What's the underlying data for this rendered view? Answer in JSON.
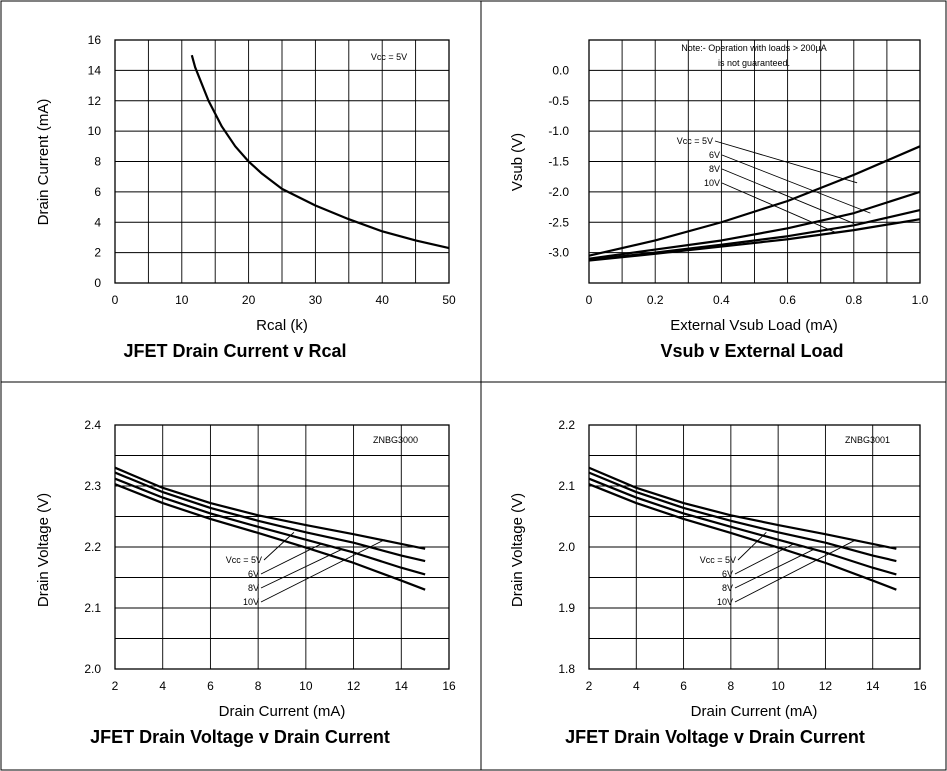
{
  "chart_data": [
    {
      "type": "line",
      "title": "JFET Drain Current v Rcal",
      "xlabel": "Rcal (k)",
      "ylabel": "Drain Current (mA)",
      "xlim": [
        0,
        50
      ],
      "ylim": [
        0,
        16
      ],
      "xticks": [
        "0",
        "10",
        "20",
        "30",
        "40",
        "50"
      ],
      "yticks": [
        "0",
        "2",
        "4",
        "6",
        "8",
        "10",
        "12",
        "14",
        "16"
      ],
      "grid": true,
      "annotations": [
        "Vcc = 5V"
      ],
      "series": [
        {
          "x": [
            11.5,
            12,
            14,
            16,
            18,
            20,
            22,
            25,
            30,
            35,
            40,
            45,
            50
          ],
          "y": [
            15.0,
            14.2,
            12.0,
            10.3,
            9.0,
            8.0,
            7.2,
            6.2,
            5.1,
            4.2,
            3.4,
            2.8,
            2.3
          ]
        }
      ]
    },
    {
      "type": "line",
      "title": "Vsub v External Load",
      "xlabel": "External Vsub Load (mA)",
      "ylabel": "Vsub (V)",
      "xlim": [
        0,
        1.0
      ],
      "ylim": [
        -3.5,
        0.5
      ],
      "xticks": [
        "0",
        "0.2",
        "0.4",
        "0.6",
        "0.8",
        "1.0"
      ],
      "yticks": [
        "0.0",
        "-0.5",
        "-1.0",
        "-1.5",
        "-2.0",
        "-2.5",
        "-3.0"
      ],
      "grid": true,
      "annotations": [
        "Note:- Operation with loads > 200µA",
        "is not guaranteed."
      ],
      "series": [
        {
          "name": "Vcc = 5V",
          "x": [
            0,
            0.2,
            0.4,
            0.6,
            0.8,
            1.0
          ],
          "y": [
            -3.05,
            -2.8,
            -2.5,
            -2.15,
            -1.72,
            -1.25
          ]
        },
        {
          "name": "6V",
          "x": [
            0,
            0.2,
            0.4,
            0.6,
            0.8,
            1.0
          ],
          "y": [
            -3.1,
            -2.95,
            -2.8,
            -2.6,
            -2.35,
            -2.0
          ]
        },
        {
          "name": "8V",
          "x": [
            0,
            0.2,
            0.4,
            0.6,
            0.8,
            1.0
          ],
          "y": [
            -3.12,
            -3.0,
            -2.87,
            -2.73,
            -2.55,
            -2.3
          ]
        },
        {
          "name": "10V",
          "x": [
            0,
            0.2,
            0.4,
            0.6,
            0.8,
            1.0
          ],
          "y": [
            -3.13,
            -3.02,
            -2.9,
            -2.78,
            -2.63,
            -2.45
          ]
        }
      ]
    },
    {
      "type": "line",
      "title": "JFET Drain Voltage v Drain Current",
      "xlabel": "Drain Current (mA)",
      "ylabel": "Drain Voltage (V)",
      "xlim": [
        2,
        16
      ],
      "ylim": [
        2.0,
        2.4
      ],
      "xticks": [
        "2",
        "4",
        "6",
        "8",
        "10",
        "12",
        "14",
        "16"
      ],
      "yticks": [
        "2.0",
        "2.1",
        "2.2",
        "2.3",
        "2.4"
      ],
      "grid": true,
      "annotations": [
        "ZNBG3000"
      ],
      "series": [
        {
          "name": "Vcc = 5V",
          "x": [
            2,
            4,
            6,
            8,
            10,
            12,
            14,
            15
          ],
          "y": [
            2.33,
            2.297,
            2.272,
            2.252,
            2.236,
            2.221,
            2.205,
            2.197
          ]
        },
        {
          "name": "6V",
          "x": [
            2,
            4,
            6,
            8,
            10,
            12,
            14,
            15
          ],
          "y": [
            2.322,
            2.29,
            2.264,
            2.243,
            2.224,
            2.207,
            2.186,
            2.177
          ]
        },
        {
          "name": "8V",
          "x": [
            2,
            4,
            6,
            8,
            10,
            12,
            14,
            15
          ],
          "y": [
            2.312,
            2.281,
            2.255,
            2.233,
            2.212,
            2.191,
            2.166,
            2.155
          ]
        },
        {
          "name": "10V",
          "x": [
            2,
            4,
            6,
            8,
            10,
            12,
            14,
            15
          ],
          "y": [
            2.303,
            2.272,
            2.246,
            2.223,
            2.199,
            2.174,
            2.145,
            2.13
          ]
        }
      ]
    },
    {
      "type": "line",
      "title": "JFET Drain Voltage v Drain Current",
      "xlabel": "Drain Current (mA)",
      "ylabel": "Drain Voltage (V)",
      "xlim": [
        2,
        16
      ],
      "ylim": [
        1.8,
        2.2
      ],
      "xticks": [
        "2",
        "4",
        "6",
        "8",
        "10",
        "12",
        "14",
        "16"
      ],
      "yticks": [
        "1.8",
        "1.9",
        "2.0",
        "2.1",
        "2.2"
      ],
      "grid": true,
      "annotations": [
        "ZNBG3001"
      ],
      "series": [
        {
          "name": "Vcc = 5V",
          "x": [
            2,
            4,
            6,
            8,
            10,
            12,
            14,
            15
          ],
          "y": [
            2.13,
            2.097,
            2.072,
            2.052,
            2.036,
            2.021,
            2.005,
            1.997
          ]
        },
        {
          "name": "6V",
          "x": [
            2,
            4,
            6,
            8,
            10,
            12,
            14,
            15
          ],
          "y": [
            2.122,
            2.09,
            2.064,
            2.043,
            2.024,
            2.007,
            1.986,
            1.977
          ]
        },
        {
          "name": "8V",
          "x": [
            2,
            4,
            6,
            8,
            10,
            12,
            14,
            15
          ],
          "y": [
            2.112,
            2.081,
            2.055,
            2.033,
            2.012,
            1.991,
            1.966,
            1.955
          ]
        },
        {
          "name": "10V",
          "x": [
            2,
            4,
            6,
            8,
            10,
            12,
            14,
            15
          ],
          "y": [
            2.103,
            2.072,
            2.046,
            2.023,
            1.999,
            1.974,
            1.945,
            1.93
          ]
        }
      ]
    }
  ]
}
